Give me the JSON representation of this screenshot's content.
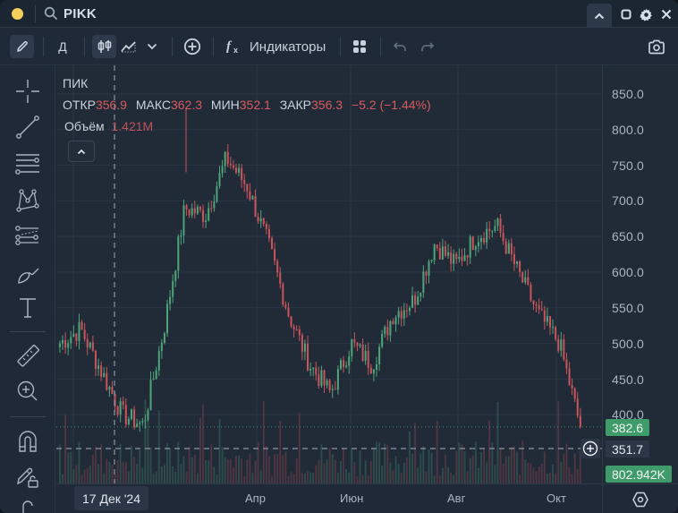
{
  "titlebar": {
    "symbol": "PIKK",
    "status_dot_color": "#f5cf5b",
    "icons": [
      "search-icon",
      "chevron-up-icon",
      "maximize-icon",
      "gear-icon",
      "close-icon"
    ]
  },
  "toolbar": {
    "interval_label": "Д",
    "indicators_label": "Индикаторы",
    "icons": [
      "pencil-icon",
      "candlestick-icon",
      "area-chart-icon",
      "chevron-down-icon",
      "add-circle-icon",
      "fx-icon",
      "layout-grid-icon",
      "undo-icon",
      "redo-icon",
      "camera-icon"
    ]
  },
  "sidebar": {
    "tools": [
      "crosshair-icon",
      "trendline-icon",
      "horizontal-lines-icon",
      "pattern-icon",
      "fib-retracement-icon",
      "brush-icon",
      "text-icon",
      "ruler-icon",
      "zoom-in-icon",
      "magnet-icon",
      "lock-drawings-icon",
      "more-icon"
    ]
  },
  "legend": {
    "name": "ПИК",
    "open_label": "ОТКР",
    "open_value": "356.9",
    "high_label": "МАКС",
    "high_value": "362.3",
    "low_label": "МИН",
    "low_value": "352.1",
    "close_label": "ЗАКР",
    "close_value": "356.3",
    "change": "−5.2 (−1.44%)",
    "volume_label": "Объём",
    "volume_value": "1.421M"
  },
  "price_axis": {
    "ticks": [
      "850.0",
      "800.0",
      "750.0",
      "700.0",
      "650.0",
      "600.0",
      "550.0",
      "500.0",
      "450.0",
      "400.0"
    ],
    "last_price_badge": "382.6",
    "crosshair_price_badge": "351.7",
    "volume_badge": "802.942K"
  },
  "time_axis": {
    "crosshair_date": "17 Дек '24",
    "labels": [
      "Апр",
      "Июн",
      "Авг",
      "Окт"
    ]
  },
  "colors": {
    "up": "#4fa57a",
    "down": "#c9545b",
    "background": "#212b38",
    "grid": "#2a3544",
    "badge_green": "#3f9b6a"
  },
  "chart_data": {
    "type": "candlestick",
    "title": "ПИК",
    "xlabel": "",
    "ylabel": "",
    "ylim": [
      375,
      875
    ],
    "x_ticks": [
      "Апр",
      "Июн",
      "Авг",
      "Окт"
    ],
    "y_ticks": [
      400,
      450,
      500,
      550,
      600,
      650,
      700,
      750,
      800,
      850
    ],
    "last_price": 382.6,
    "crosshair": {
      "date": "17 Дек '24",
      "price": 351.7
    },
    "approx_close_path": [
      {
        "x": "Ноя '24",
        "y": 500
      },
      {
        "x": "Ноя '24",
        "y": 520
      },
      {
        "x": "Дек '24",
        "y": 460
      },
      {
        "x": "Дек '24",
        "y": 400
      },
      {
        "x": "17 Дек '24",
        "y": 385
      },
      {
        "x": "Янв '25",
        "y": 520
      },
      {
        "x": "Янв '25",
        "y": 690
      },
      {
        "x": "Фев '25",
        "y": 680
      },
      {
        "x": "Фев '25",
        "y": 760
      },
      {
        "x": "Фев '25",
        "y": 720
      },
      {
        "x": "Мар '25",
        "y": 640
      },
      {
        "x": "Мар '25",
        "y": 540
      },
      {
        "x": "Апр '25",
        "y": 470
      },
      {
        "x": "Апр '25",
        "y": 430
      },
      {
        "x": "Май '25",
        "y": 500
      },
      {
        "x": "Май '25",
        "y": 470
      },
      {
        "x": "Июн '25",
        "y": 540
      },
      {
        "x": "Июн '25",
        "y": 560
      },
      {
        "x": "Июл '25",
        "y": 640
      },
      {
        "x": "Июл '25",
        "y": 610
      },
      {
        "x": "Авг '25",
        "y": 650
      },
      {
        "x": "Авг '25",
        "y": 665
      },
      {
        "x": "Сен '25",
        "y": 600
      },
      {
        "x": "Сен '25",
        "y": 540
      },
      {
        "x": "Окт '25",
        "y": 500
      },
      {
        "x": "Окт '25",
        "y": 382.6
      }
    ]
  }
}
